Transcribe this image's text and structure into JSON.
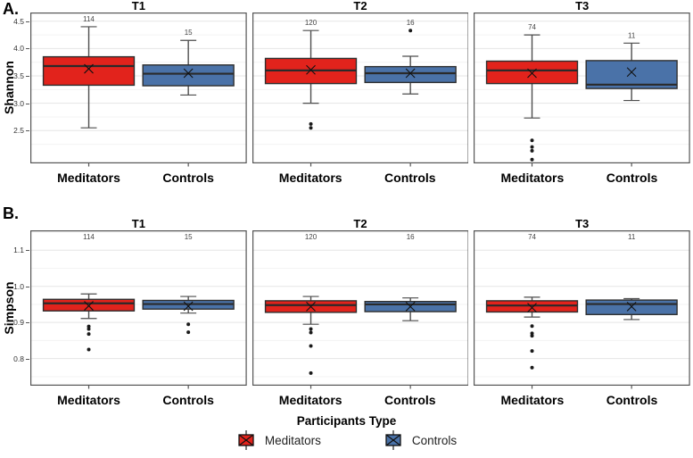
{
  "figure": {
    "colors": {
      "meditators_fill": "#E2231C",
      "controls_fill": "#4A72A8",
      "box_border": "#2e2e2e",
      "median_line": "#2a2a2a",
      "whisker": "#4d4d4d",
      "mean_marker": "#111111",
      "outlier": "#1a1a1a",
      "panel_border": "#555555",
      "grid_major": "#e5e5e5",
      "grid_minor": "#f3f3f3",
      "background": "#ffffff"
    }
  },
  "legend": {
    "title": "Participants Type",
    "items": [
      {
        "label": "Meditators",
        "color": "#E2231C",
        "key_icon": "boxplot-key-icon"
      },
      {
        "label": "Controls",
        "color": "#4A72A8",
        "key_icon": "boxplot-key-icon"
      }
    ]
  },
  "chart_data": [
    {
      "type": "boxplot",
      "panel_label": "A.",
      "ylabel": "Shannon",
      "xlabel": "",
      "facets": [
        "T1",
        "T2",
        "T3"
      ],
      "categories": [
        "Meditators",
        "Controls"
      ],
      "ylim": [
        1.9,
        4.66
      ],
      "yticks": [
        {
          "value": 2.5,
          "label": "2.5"
        },
        {
          "value": 3.0,
          "label": "3.0"
        },
        {
          "value": 3.5,
          "label": "3.5"
        },
        {
          "value": 4.0,
          "label": "4.0"
        },
        {
          "value": 4.5,
          "label": "4.5"
        }
      ],
      "grid": "on",
      "n_label_position": "above-whisker",
      "series": [
        {
          "facet": "T1",
          "groups": [
            {
              "category": "Meditators",
              "n": 114,
              "whisker_low": 2.55,
              "q1": 3.33,
              "median": 3.68,
              "q3": 3.85,
              "whisker_high": 4.4,
              "mean": 3.63,
              "outliers": []
            },
            {
              "category": "Controls",
              "n": 15,
              "whisker_low": 3.15,
              "q1": 3.32,
              "median": 3.54,
              "q3": 3.7,
              "whisker_high": 4.15,
              "mean": 3.55,
              "outliers": []
            }
          ]
        },
        {
          "facet": "T2",
          "groups": [
            {
              "category": "Meditators",
              "n": 120,
              "whisker_low": 3.0,
              "q1": 3.36,
              "median": 3.6,
              "q3": 3.82,
              "whisker_high": 4.33,
              "mean": 3.61,
              "outliers": [
                2.62,
                2.55
              ]
            },
            {
              "category": "Controls",
              "n": 16,
              "whisker_low": 3.17,
              "q1": 3.38,
              "median": 3.55,
              "q3": 3.67,
              "whisker_high": 3.86,
              "mean": 3.55,
              "outliers": [
                4.33
              ]
            }
          ]
        },
        {
          "facet": "T3",
          "groups": [
            {
              "category": "Meditators",
              "n": 74,
              "whisker_low": 2.73,
              "q1": 3.36,
              "median": 3.6,
              "q3": 3.77,
              "whisker_high": 4.25,
              "mean": 3.55,
              "outliers": [
                2.32,
                2.2,
                2.13,
                1.97
              ]
            },
            {
              "category": "Controls",
              "n": 11,
              "whisker_low": 3.05,
              "q1": 3.27,
              "median": 3.34,
              "q3": 3.78,
              "whisker_high": 4.1,
              "mean": 3.57,
              "outliers": []
            }
          ]
        }
      ]
    },
    {
      "type": "boxplot",
      "panel_label": "B.",
      "ylabel": "Simpson",
      "xlabel": "",
      "facets": [
        "T1",
        "T2",
        "T3"
      ],
      "categories": [
        "Meditators",
        "Controls"
      ],
      "ylim": [
        0.725,
        1.155
      ],
      "yticks": [
        {
          "value": 0.8,
          "label": "0.8"
        },
        {
          "value": 0.9,
          "label": "0.9"
        },
        {
          "value": 1.0,
          "label": "1.0"
        },
        {
          "value": 1.1,
          "label": "1.1"
        }
      ],
      "grid": "on",
      "n_label_position": "top",
      "series": [
        {
          "facet": "T1",
          "groups": [
            {
              "category": "Meditators",
              "n": 114,
              "whisker_low": 0.911,
              "q1": 0.932,
              "median": 0.953,
              "q3": 0.964,
              "whisker_high": 0.979,
              "mean": 0.946,
              "outliers": [
                0.889,
                0.882,
                0.868,
                0.825
              ]
            },
            {
              "category": "Controls",
              "n": 15,
              "whisker_low": 0.926,
              "q1": 0.937,
              "median": 0.951,
              "q3": 0.961,
              "whisker_high": 0.972,
              "mean": 0.945,
              "outliers": [
                0.895,
                0.873
              ]
            }
          ]
        },
        {
          "facet": "T2",
          "groups": [
            {
              "category": "Meditators",
              "n": 120,
              "whisker_low": 0.895,
              "q1": 0.928,
              "median": 0.948,
              "q3": 0.96,
              "whisker_high": 0.972,
              "mean": 0.944,
              "outliers": [
                0.882,
                0.872,
                0.835,
                0.76
              ]
            },
            {
              "category": "Controls",
              "n": 16,
              "whisker_low": 0.905,
              "q1": 0.93,
              "median": 0.95,
              "q3": 0.958,
              "whisker_high": 0.968,
              "mean": 0.944,
              "outliers": []
            }
          ]
        },
        {
          "facet": "T3",
          "groups": [
            {
              "category": "Meditators",
              "n": 74,
              "whisker_low": 0.915,
              "q1": 0.929,
              "median": 0.947,
              "q3": 0.96,
              "whisker_high": 0.97,
              "mean": 0.941,
              "outliers": [
                0.89,
                0.87,
                0.863,
                0.821,
                0.775
              ]
            },
            {
              "category": "Controls",
              "n": 11,
              "whisker_low": 0.908,
              "q1": 0.922,
              "median": 0.951,
              "q3": 0.962,
              "whisker_high": 0.966,
              "mean": 0.944,
              "outliers": []
            }
          ]
        }
      ]
    }
  ]
}
